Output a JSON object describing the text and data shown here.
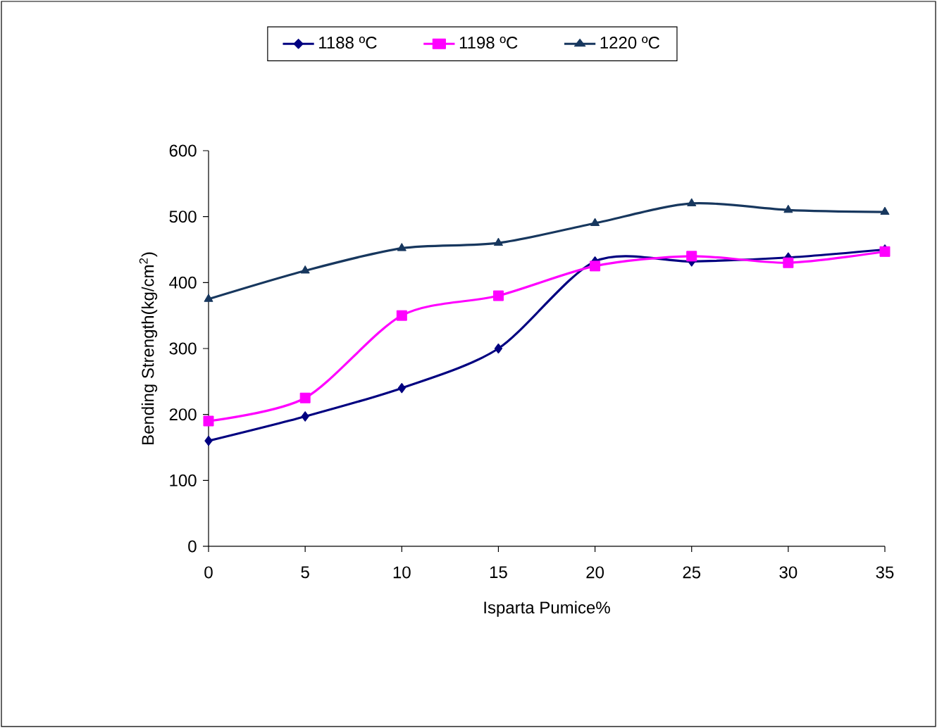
{
  "chart_data": {
    "type": "line",
    "xlabel": "Isparta Pumice%",
    "ylabel": "Bending Strength(kg/cm$^{2}$)",
    "x": [
      0,
      5,
      10,
      15,
      20,
      25,
      30,
      35
    ],
    "series": [
      {
        "name": "1188 ºC",
        "color": "#000080",
        "marker": "diamond",
        "values": [
          160,
          197,
          240,
          300,
          432,
          432,
          438,
          450
        ]
      },
      {
        "name": "1198 ºC",
        "color": "#ff00ff",
        "marker": "square",
        "values": [
          190,
          225,
          350,
          380,
          425,
          440,
          430,
          447
        ]
      },
      {
        "name": "1220 ºC",
        "color": "#17375e",
        "marker": "triangle",
        "values": [
          375,
          418,
          452,
          460,
          490,
          520,
          510,
          507
        ]
      }
    ],
    "xlim": [
      0,
      35
    ],
    "xticks": [
      0,
      5,
      10,
      15,
      20,
      25,
      30,
      35
    ],
    "ylim": [
      0,
      600
    ],
    "yticks": [
      0,
      100,
      200,
      300,
      400,
      500,
      600
    ],
    "grid": false,
    "legend": "top",
    "line_style": "solid"
  }
}
